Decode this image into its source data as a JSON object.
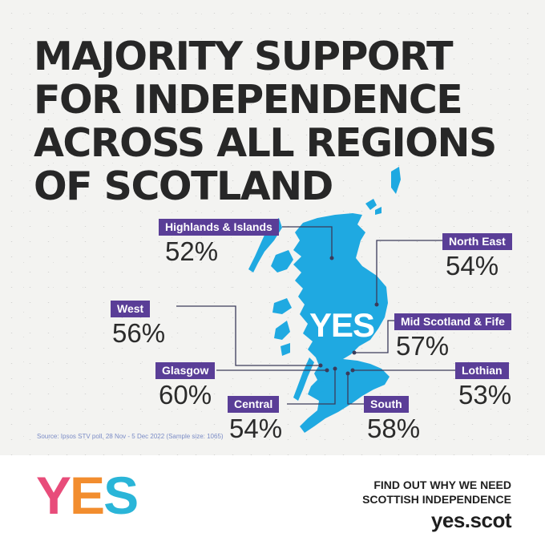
{
  "headline": {
    "lines": [
      "MAJORITY SUPPORT",
      "FOR INDEPENDENCE",
      "ACROSS ALL REGIONS",
      "OF SCOTLAND"
    ]
  },
  "map_center_label": "YES",
  "regions": [
    {
      "name": "Highlands & Islands",
      "value": "52%"
    },
    {
      "name": "North East",
      "value": "54%"
    },
    {
      "name": "West",
      "value": "56%"
    },
    {
      "name": "Mid Scotland & Fife",
      "value": "57%"
    },
    {
      "name": "Glasgow",
      "value": "60%"
    },
    {
      "name": "Lothian",
      "value": "53%"
    },
    {
      "name": "Central",
      "value": "54%"
    },
    {
      "name": "South",
      "value": "58%"
    }
  ],
  "source": "Source: Ipsos STV poll, 28 Nov - 5 Dec 2022 (Sample size: 1065)",
  "footer": {
    "logo_letters": [
      "Y",
      "E",
      "S"
    ],
    "logo_colors": [
      "#e84c7a",
      "#f28d2e",
      "#2ab5d8",
      "#5a3e97"
    ],
    "cta_line1": "FIND OUT WHY WE NEED",
    "cta_line2": "SCOTTISH INDEPENDENCE",
    "url": "yes.scot"
  },
  "colors": {
    "map": "#1fa9e1",
    "tag": "#5a3e97",
    "text": "#272727"
  }
}
